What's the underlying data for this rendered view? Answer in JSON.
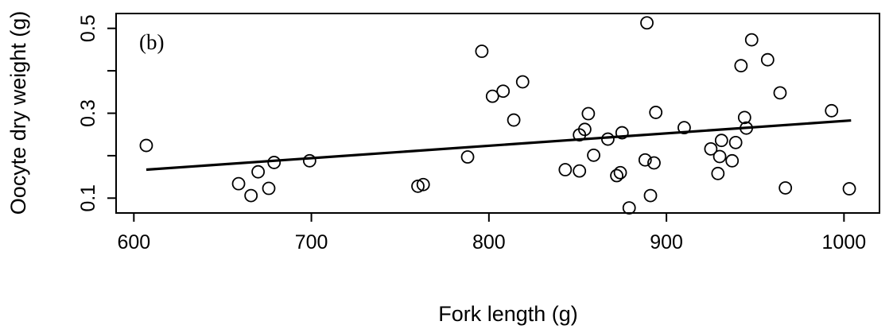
{
  "chart_data": {
    "type": "scatter",
    "panel_label": "(b)",
    "xlabel": "Fork length (g)",
    "ylabel": "Oocyte dry weight (g)",
    "xlim": [
      590,
      1020
    ],
    "ylim": [
      0.065,
      0.535
    ],
    "x_ticks": [
      600,
      700,
      800,
      900,
      1000
    ],
    "y_ticks": [
      0.1,
      0.3,
      0.5
    ],
    "y_tick_labels": [
      "0.1",
      "0.3",
      "0.5"
    ],
    "y_minor_ticks": [
      0.2,
      0.4
    ],
    "box": true,
    "grid": false,
    "points": [
      {
        "x": 607,
        "y": 0.224
      },
      {
        "x": 659,
        "y": 0.134
      },
      {
        "x": 666,
        "y": 0.106
      },
      {
        "x": 670,
        "y": 0.162
      },
      {
        "x": 676,
        "y": 0.123
      },
      {
        "x": 679,
        "y": 0.184
      },
      {
        "x": 699,
        "y": 0.188
      },
      {
        "x": 760,
        "y": 0.128
      },
      {
        "x": 763,
        "y": 0.132
      },
      {
        "x": 788,
        "y": 0.197
      },
      {
        "x": 796,
        "y": 0.446
      },
      {
        "x": 802,
        "y": 0.34
      },
      {
        "x": 808,
        "y": 0.352
      },
      {
        "x": 814,
        "y": 0.284
      },
      {
        "x": 819,
        "y": 0.374
      },
      {
        "x": 843,
        "y": 0.167
      },
      {
        "x": 851,
        "y": 0.164
      },
      {
        "x": 851,
        "y": 0.249
      },
      {
        "x": 854,
        "y": 0.262
      },
      {
        "x": 856,
        "y": 0.299
      },
      {
        "x": 859,
        "y": 0.201
      },
      {
        "x": 867,
        "y": 0.239
      },
      {
        "x": 872,
        "y": 0.153
      },
      {
        "x": 874,
        "y": 0.16
      },
      {
        "x": 875,
        "y": 0.254
      },
      {
        "x": 879,
        "y": 0.077
      },
      {
        "x": 888,
        "y": 0.19
      },
      {
        "x": 889,
        "y": 0.513
      },
      {
        "x": 891,
        "y": 0.106
      },
      {
        "x": 893,
        "y": 0.183
      },
      {
        "x": 894,
        "y": 0.302
      },
      {
        "x": 910,
        "y": 0.266
      },
      {
        "x": 925,
        "y": 0.216
      },
      {
        "x": 929,
        "y": 0.158
      },
      {
        "x": 930,
        "y": 0.198
      },
      {
        "x": 931,
        "y": 0.236
      },
      {
        "x": 937,
        "y": 0.188
      },
      {
        "x": 939,
        "y": 0.231
      },
      {
        "x": 942,
        "y": 0.412
      },
      {
        "x": 944,
        "y": 0.29
      },
      {
        "x": 945,
        "y": 0.265
      },
      {
        "x": 948,
        "y": 0.473
      },
      {
        "x": 957,
        "y": 0.426
      },
      {
        "x": 964,
        "y": 0.348
      },
      {
        "x": 967,
        "y": 0.124
      },
      {
        "x": 993,
        "y": 0.306
      },
      {
        "x": 1003,
        "y": 0.122
      }
    ],
    "fit_line": {
      "x": [
        607,
        1004
      ],
      "y": [
        0.167,
        0.283
      ]
    }
  }
}
